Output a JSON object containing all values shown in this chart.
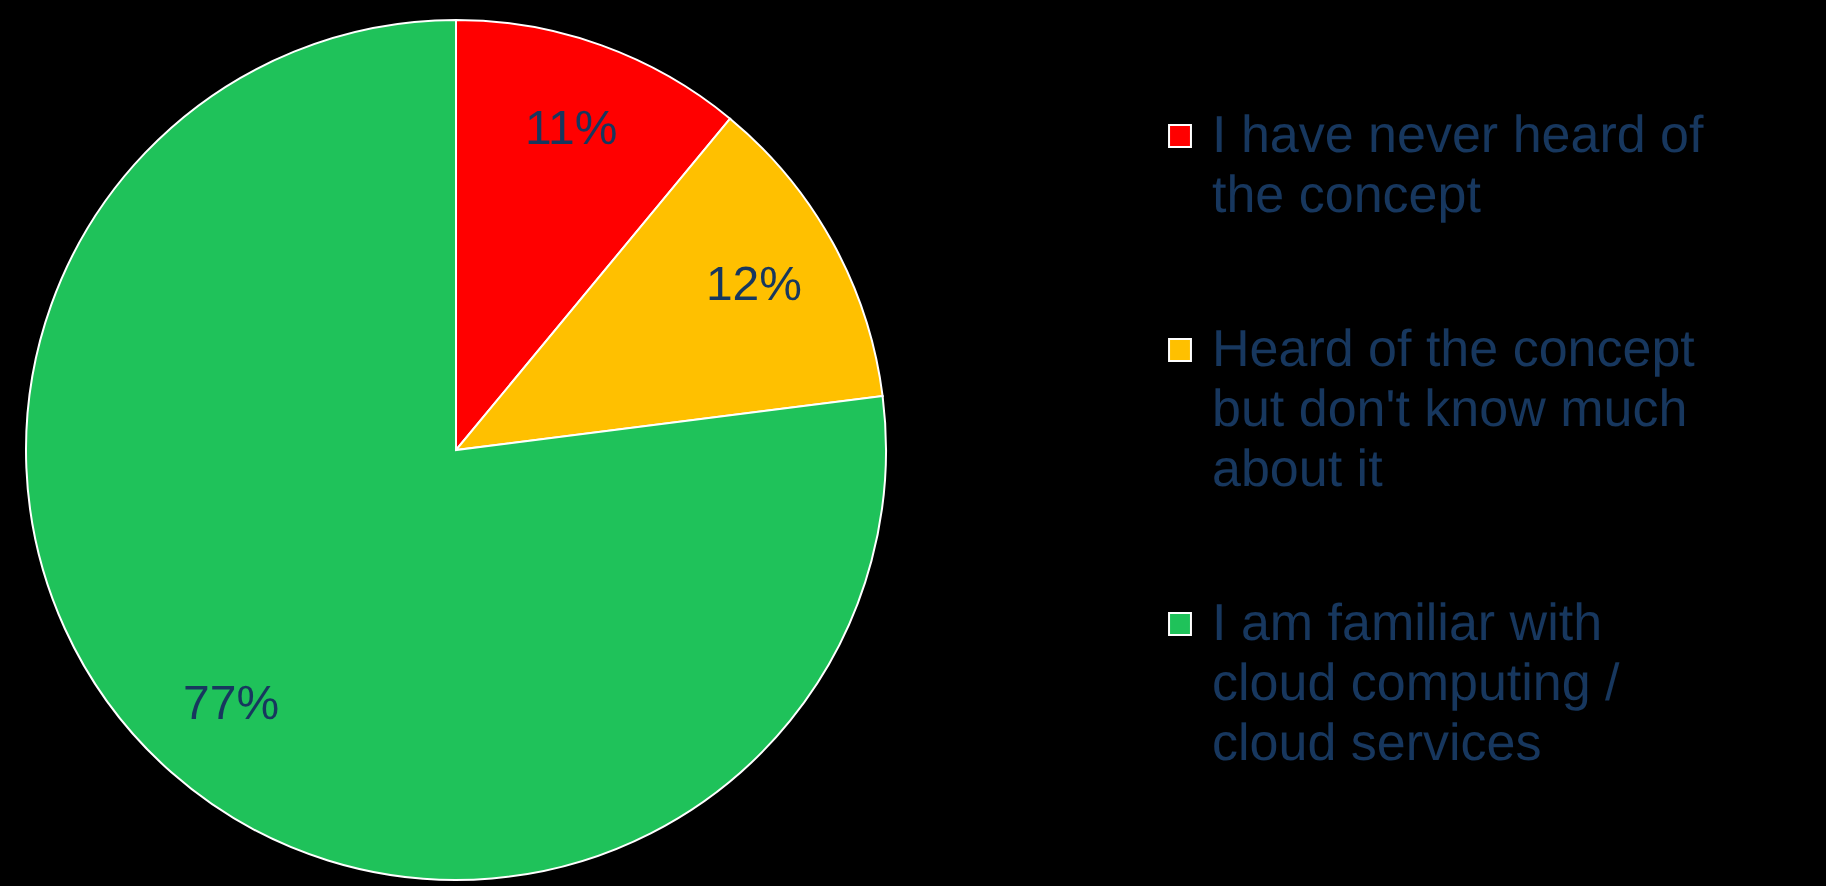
{
  "chart_data": {
    "type": "pie",
    "categories": [
      "I have never heard of the concept",
      "Heard of the concept but don't know much about it",
      "I am familiar with cloud computing / cloud services"
    ],
    "values": [
      11,
      12,
      77
    ],
    "colors": [
      "#ff0000",
      "#ffc000",
      "#1fc25a"
    ],
    "value_labels": [
      "11%",
      "12%",
      "77%"
    ],
    "legend": "right"
  }
}
